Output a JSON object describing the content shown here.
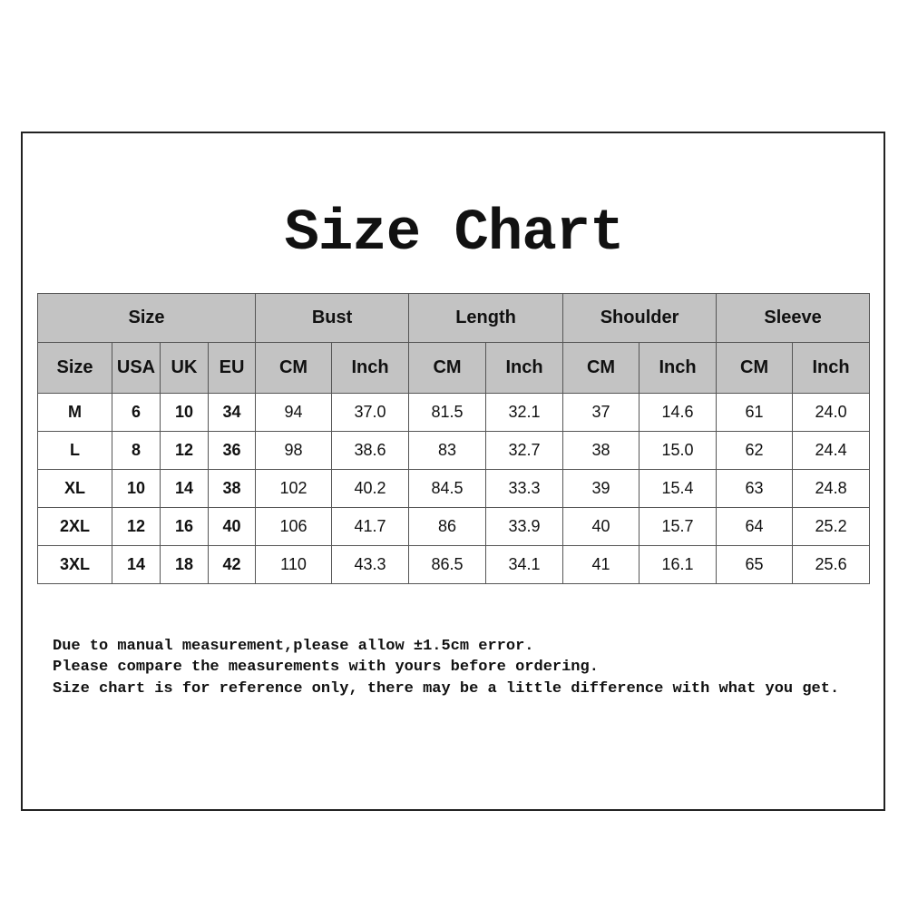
{
  "title": "Size Chart",
  "groups": [
    "Size",
    "Bust",
    "Length",
    "Shoulder",
    "Sleeve"
  ],
  "subheaders": [
    "Size",
    "USA",
    "UK",
    "EU",
    "CM",
    "Inch",
    "CM",
    "Inch",
    "CM",
    "Inch",
    "CM",
    "Inch"
  ],
  "rows": [
    [
      "M",
      "6",
      "10",
      "34",
      "94",
      "37.0",
      "81.5",
      "32.1",
      "37",
      "14.6",
      "61",
      "24.0"
    ],
    [
      "L",
      "8",
      "12",
      "36",
      "98",
      "38.6",
      "83",
      "32.7",
      "38",
      "15.0",
      "62",
      "24.4"
    ],
    [
      "XL",
      "10",
      "14",
      "38",
      "102",
      "40.2",
      "84.5",
      "33.3",
      "39",
      "15.4",
      "63",
      "24.8"
    ],
    [
      "2XL",
      "12",
      "16",
      "40",
      "106",
      "41.7",
      "86",
      "33.9",
      "40",
      "15.7",
      "64",
      "25.2"
    ],
    [
      "3XL",
      "14",
      "18",
      "42",
      "110",
      "43.3",
      "86.5",
      "34.1",
      "41",
      "16.1",
      "65",
      "25.6"
    ]
  ],
  "notes": [
    "Due to manual measurement,please allow ±1.5cm error.",
    "Please compare the measurements with yours before ordering.",
    "Size chart is for reference only, there may be a little difference with what you get."
  ],
  "colors": {
    "header_bg": "#c3c3c3",
    "border": "#555555"
  }
}
